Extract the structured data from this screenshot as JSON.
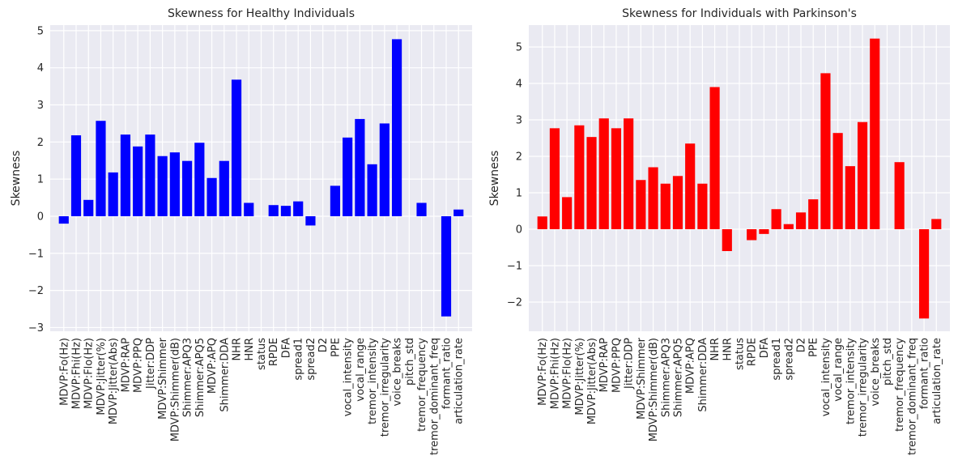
{
  "chart_data": [
    {
      "type": "bar",
      "title": "Skewness for Healthy Individuals",
      "xlabel": "",
      "ylabel": "Skewness",
      "ylim": [
        -3.1,
        5.15
      ],
      "yticks": [
        -3,
        -2,
        -1,
        0,
        1,
        2,
        3,
        4,
        5
      ],
      "ytick_labels": [
        "−3",
        "−2",
        "−1",
        "0",
        "1",
        "2",
        "3",
        "4",
        "5"
      ],
      "grid": true,
      "legend": "none",
      "color": "#0000ff",
      "categories": [
        "MDVP:Fo(Hz)",
        "MDVP:Fhi(Hz)",
        "MDVP:Flo(Hz)",
        "MDVP:Jitter(%)",
        "MDVP:Jitter(Abs)",
        "MDVP:RAP",
        "MDVP:PPQ",
        "Jitter:DDP",
        "MDVP:Shimmer",
        "MDVP:Shimmer(dB)",
        "Shimmer:APQ3",
        "Shimmer:APQ5",
        "MDVP:APQ",
        "Shimmer:DDA",
        "NHR",
        "HNR",
        "status",
        "RPDE",
        "DFA",
        "spread1",
        "spread2",
        "D2",
        "PPE",
        "vocal_intensity",
        "vocal_range",
        "tremor_intensity",
        "tremor_irregularity",
        "voice_breaks",
        "pitch_std",
        "tremor_frequency",
        "tremor_dominant_freq",
        "formant_ratio",
        "articulation_rate"
      ],
      "values": [
        -0.2,
        2.18,
        0.44,
        2.57,
        1.18,
        2.2,
        1.88,
        2.2,
        1.62,
        1.72,
        1.49,
        1.98,
        1.03,
        1.49,
        3.68,
        0.36,
        0,
        0.3,
        0.28,
        0.4,
        -0.25,
        0,
        0.82,
        2.12,
        2.62,
        1.4,
        2.5,
        4.77,
        0,
        0.36,
        0,
        -2.7,
        0.18
      ]
    },
    {
      "type": "bar",
      "title": "Skewness for Individuals with Parkinson's",
      "xlabel": "",
      "ylabel": "Skewness",
      "ylim": [
        -2.8,
        5.6
      ],
      "yticks": [
        -2,
        -1,
        0,
        1,
        2,
        3,
        4,
        5
      ],
      "ytick_labels": [
        "−2",
        "−1",
        "0",
        "1",
        "2",
        "3",
        "4",
        "5"
      ],
      "grid": true,
      "legend": "none",
      "color": "#ff0000",
      "categories": [
        "MDVP:Fo(Hz)",
        "MDVP:Fhi(Hz)",
        "MDVP:Flo(Hz)",
        "MDVP:Jitter(%)",
        "MDVP:Jitter(Abs)",
        "MDVP:RAP",
        "MDVP:PPQ",
        "Jitter:DDP",
        "MDVP:Shimmer",
        "MDVP:Shimmer(dB)",
        "Shimmer:APQ3",
        "Shimmer:APQ5",
        "MDVP:APQ",
        "Shimmer:DDA",
        "NHR",
        "HNR",
        "status",
        "RPDE",
        "DFA",
        "spread1",
        "spread2",
        "D2",
        "PPE",
        "vocal_intensity",
        "vocal_range",
        "tremor_intensity",
        "tremor_irregularity",
        "voice_breaks",
        "pitch_std",
        "tremor_frequency",
        "tremor_dominant_freq",
        "formant_ratio",
        "articulation_rate"
      ],
      "values": [
        0.35,
        2.77,
        0.88,
        2.85,
        2.53,
        3.04,
        2.77,
        3.04,
        1.35,
        1.7,
        1.25,
        1.46,
        2.35,
        1.25,
        3.9,
        -0.6,
        0,
        -0.3,
        -0.13,
        0.55,
        0.14,
        0.46,
        0.82,
        4.28,
        2.64,
        1.73,
        2.94,
        5.23,
        0,
        1.84,
        0,
        -2.45,
        0.28
      ]
    }
  ]
}
